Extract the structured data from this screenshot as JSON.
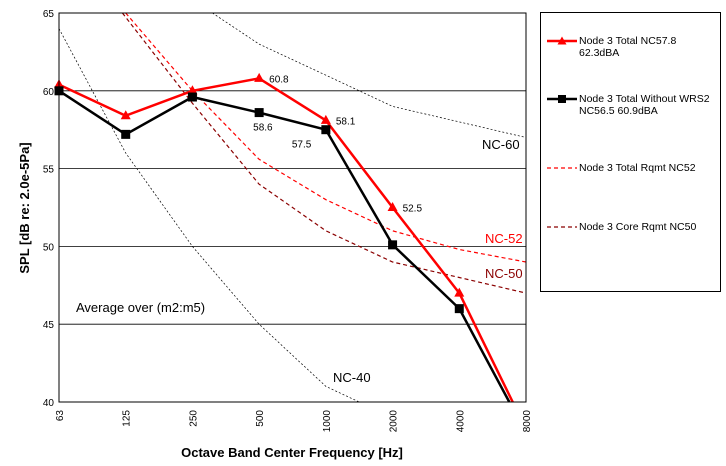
{
  "chart_data": {
    "type": "line",
    "x_categories": [
      "63",
      "125",
      "250",
      "500",
      "1000",
      "2000",
      "4000",
      "8000"
    ],
    "xlabel": "Octave Band Center Frequency [Hz]",
    "ylabel": "SPL [dB re: 2.0e-5Pa]",
    "ylim": [
      40,
      65
    ],
    "yticks": [
      40,
      45,
      50,
      55,
      60,
      65
    ],
    "grid": "horizontal",
    "legend_position": "right",
    "series": [
      {
        "key": "total",
        "name": "Node 3 Total NC57.8 62.3dBA",
        "color": "#ff0000",
        "marker": "triangle",
        "points": [
          [
            0,
            60.4
          ],
          [
            1,
            58.4
          ],
          [
            2,
            60.0
          ],
          [
            3,
            60.8
          ],
          [
            4,
            58.1
          ],
          [
            5,
            52.5
          ],
          [
            6,
            47.0
          ],
          [
            6.8,
            40.0
          ]
        ],
        "labels": [
          "",
          "",
          "",
          "60.8",
          "58.1",
          "52.5",
          "",
          ""
        ]
      },
      {
        "key": "without",
        "name": "Node 3 Total Without WRS2 NC56.5 60.9dBA",
        "color": "#000000",
        "marker": "square",
        "points": [
          [
            0,
            60.0
          ],
          [
            1,
            57.2
          ],
          [
            2,
            59.6
          ],
          [
            3,
            58.6
          ],
          [
            4,
            57.5
          ],
          [
            5,
            50.1
          ],
          [
            6,
            46.0
          ],
          [
            6.75,
            40.0
          ]
        ],
        "labels": [
          "",
          "",
          "",
          "58.6",
          "57.5",
          "",
          "",
          ""
        ]
      },
      {
        "key": "rqmt52",
        "name": "Node 3 Total Rqmt NC52",
        "color": "#ff0000",
        "dash": "4,3",
        "points": [
          [
            1,
            65.0
          ],
          [
            2,
            60.0
          ],
          [
            3,
            55.6
          ],
          [
            4,
            53.0
          ],
          [
            5,
            51.0
          ],
          [
            6,
            49.8
          ],
          [
            7,
            49.0
          ]
        ]
      },
      {
        "key": "rqmt50",
        "name": "Node 3 Core Rqmt NC50",
        "color": "#8b0000",
        "dash": "4,3",
        "points": [
          [
            0.95,
            65.0
          ],
          [
            2,
            59.2
          ],
          [
            3,
            54.0
          ],
          [
            4,
            51.0
          ],
          [
            5,
            49.0
          ],
          [
            6,
            48.0
          ],
          [
            7,
            47.0
          ]
        ]
      }
    ],
    "nc_curves": [
      {
        "key": "nc60",
        "label": "NC-60",
        "points": [
          [
            2.3,
            65.0
          ],
          [
            3,
            63.0
          ],
          [
            4,
            61.0
          ],
          [
            5,
            59.0
          ],
          [
            6,
            58.0
          ],
          [
            7,
            57.0
          ]
        ]
      },
      {
        "key": "nc40",
        "label": "NC-40",
        "points": [
          [
            0,
            64.0
          ],
          [
            1,
            56.0
          ],
          [
            2,
            50.0
          ],
          [
            3,
            45.0
          ],
          [
            4,
            41.0
          ],
          [
            4.5,
            40.0
          ]
        ]
      }
    ],
    "annotations": {
      "nc60": "NC-60",
      "nc52": "NC-52",
      "nc50": "NC-50",
      "nc40": "NC-40",
      "average": "Average over (m2:m5)"
    }
  }
}
